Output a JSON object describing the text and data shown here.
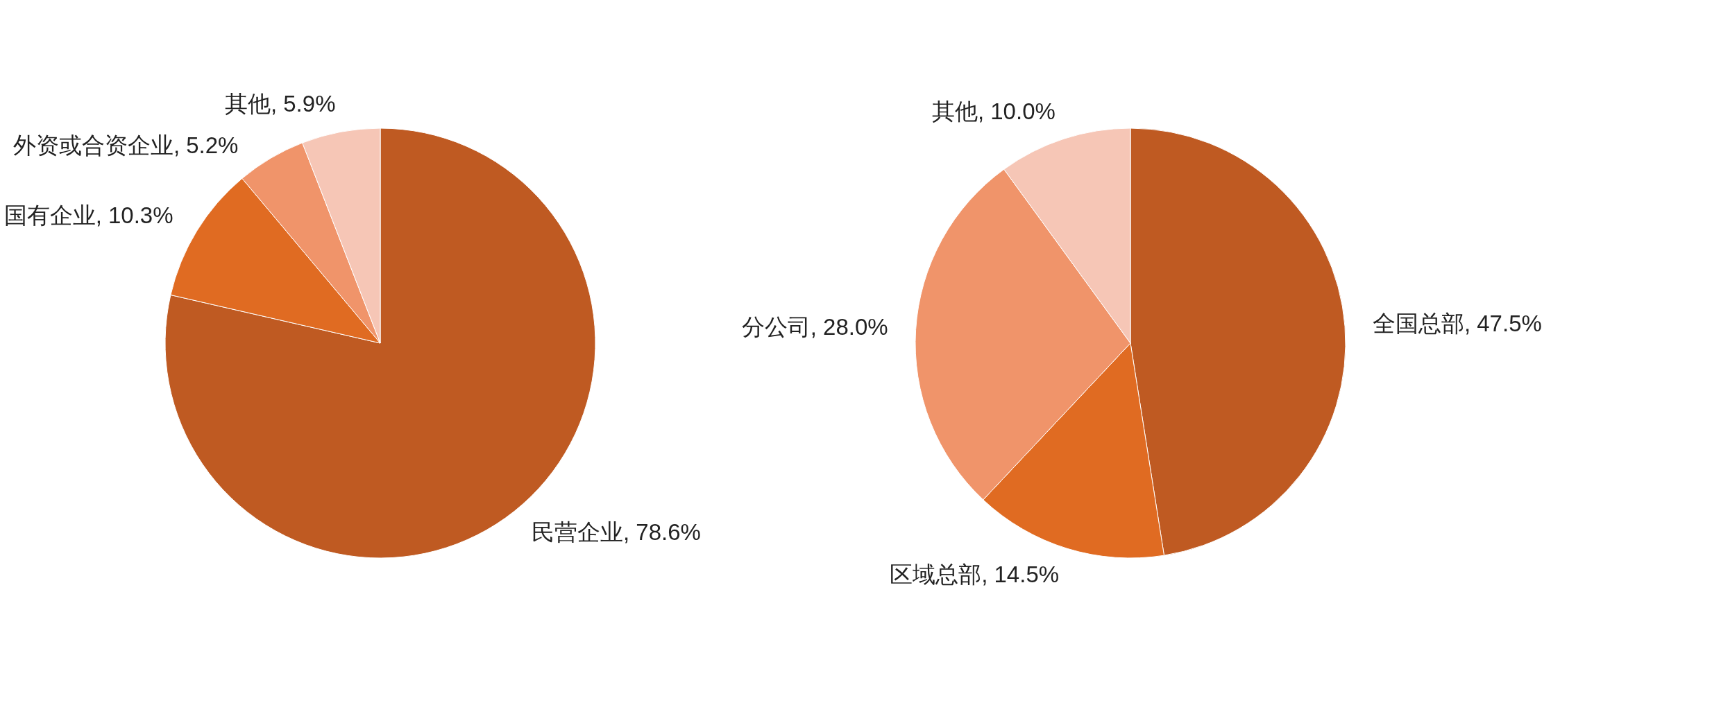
{
  "chart_data": [
    {
      "type": "pie",
      "categories": [
        "民营企业",
        "国有企业",
        "外资或合资企业",
        "其他"
      ],
      "values": [
        78.6,
        10.3,
        5.2,
        5.9
      ],
      "value_labels": [
        "78.6%",
        "10.3%",
        "5.2%",
        "5.9%"
      ],
      "colors": [
        "#bf5a22",
        "#e06b22",
        "#f0946a",
        "#f6c6b6"
      ],
      "legend": false
    },
    {
      "type": "pie",
      "categories": [
        "全国总部",
        "区域总部",
        "分公司",
        "其他"
      ],
      "values": [
        47.5,
        14.5,
        28.0,
        10.0
      ],
      "value_labels": [
        "47.5%",
        "14.5%",
        "28.0%",
        "10.0%"
      ],
      "colors": [
        "#bf5a22",
        "#e3711f",
        "#f09566",
        "#f6c6b6"
      ],
      "legend": false
    }
  ]
}
